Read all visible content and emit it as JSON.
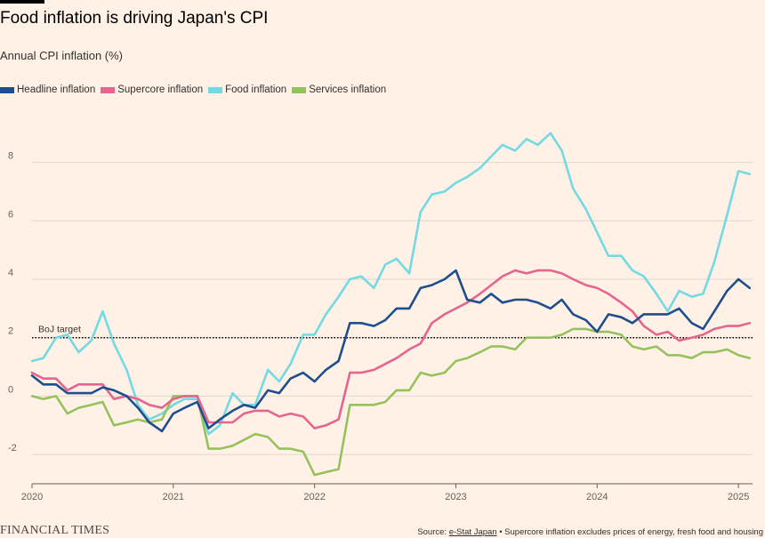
{
  "title": "Food inflation is driving Japan's CPI",
  "subtitle": "Annual CPI inflation (%)",
  "source": {
    "prefix": "Source: ",
    "link": "e-Stat Japan",
    "note": " • Supercore inflation excludes prices of energy, fresh food and housing"
  },
  "brand": "FINANCIAL TIMES",
  "chart_data": {
    "type": "line",
    "title": "Food inflation is driving Japan's CPI",
    "ylabel": "Annual CPI inflation (%)",
    "xlabel": "",
    "ylim": [
      -3,
      9.6
    ],
    "xlim": [
      2020.0,
      2025.1
    ],
    "yticks": [
      -2,
      0,
      2,
      4,
      6,
      8
    ],
    "xticks": [
      2020,
      2021,
      2022,
      2023,
      2024,
      2025
    ],
    "grid": true,
    "legend": "top-left",
    "annotations": [
      {
        "label": "BoJ target",
        "y": 2
      }
    ],
    "series": [
      {
        "name": "Headline inflation",
        "color": "#1F4E8F",
        "x": [
          2020.0,
          2020.08,
          2020.17,
          2020.25,
          2020.33,
          2020.42,
          2020.5,
          2020.58,
          2020.67,
          2020.75,
          2020.83,
          2020.92,
          2021.0,
          2021.08,
          2021.17,
          2021.25,
          2021.33,
          2021.42,
          2021.5,
          2021.58,
          2021.67,
          2021.75,
          2021.83,
          2021.92,
          2022.0,
          2022.08,
          2022.17,
          2022.25,
          2022.33,
          2022.42,
          2022.5,
          2022.58,
          2022.67,
          2022.75,
          2022.83,
          2022.92,
          2023.0,
          2023.08,
          2023.17,
          2023.25,
          2023.33,
          2023.42,
          2023.5,
          2023.58,
          2023.67,
          2023.75,
          2023.83,
          2023.92,
          2024.0,
          2024.08,
          2024.17,
          2024.25,
          2024.33,
          2024.42,
          2024.5,
          2024.58,
          2024.67,
          2024.75,
          2024.83,
          2024.92,
          2025.0,
          2025.08
        ],
        "values": [
          0.7,
          0.4,
          0.4,
          0.1,
          0.1,
          0.1,
          0.3,
          0.2,
          0.0,
          -0.4,
          -0.9,
          -1.2,
          -0.6,
          -0.4,
          -0.2,
          -1.1,
          -0.8,
          -0.5,
          -0.3,
          -0.4,
          0.2,
          0.1,
          0.6,
          0.8,
          0.5,
          0.9,
          1.2,
          2.5,
          2.5,
          2.4,
          2.6,
          3.0,
          3.0,
          3.7,
          3.8,
          4.0,
          4.3,
          3.3,
          3.2,
          3.5,
          3.2,
          3.3,
          3.3,
          3.2,
          3.0,
          3.3,
          2.8,
          2.6,
          2.2,
          2.8,
          2.7,
          2.5,
          2.8,
          2.8,
          2.8,
          3.0,
          2.5,
          2.3,
          2.9,
          3.6,
          4.0,
          3.7
        ]
      },
      {
        "name": "Supercore inflation",
        "color": "#E4658E",
        "x": [
          2020.0,
          2020.08,
          2020.17,
          2020.25,
          2020.33,
          2020.42,
          2020.5,
          2020.58,
          2020.67,
          2020.75,
          2020.83,
          2020.92,
          2021.0,
          2021.08,
          2021.17,
          2021.25,
          2021.33,
          2021.42,
          2021.5,
          2021.58,
          2021.67,
          2021.75,
          2021.83,
          2021.92,
          2022.0,
          2022.08,
          2022.17,
          2022.25,
          2022.33,
          2022.42,
          2022.5,
          2022.58,
          2022.67,
          2022.75,
          2022.83,
          2022.92,
          2023.0,
          2023.08,
          2023.17,
          2023.25,
          2023.33,
          2023.42,
          2023.5,
          2023.58,
          2023.67,
          2023.75,
          2023.83,
          2023.92,
          2024.0,
          2024.08,
          2024.17,
          2024.25,
          2024.33,
          2024.42,
          2024.5,
          2024.58,
          2024.67,
          2024.75,
          2024.83,
          2024.92,
          2025.0,
          2025.08
        ],
        "values": [
          0.8,
          0.6,
          0.6,
          0.2,
          0.4,
          0.4,
          0.4,
          -0.1,
          0.0,
          -0.1,
          -0.3,
          -0.4,
          -0.1,
          0.0,
          0.0,
          -0.9,
          -0.9,
          -0.9,
          -0.6,
          -0.5,
          -0.5,
          -0.7,
          -0.6,
          -0.7,
          -1.1,
          -1.0,
          -0.8,
          0.8,
          0.8,
          0.9,
          1.1,
          1.3,
          1.6,
          1.8,
          2.5,
          2.8,
          3.0,
          3.2,
          3.5,
          3.8,
          4.1,
          4.3,
          4.2,
          4.3,
          4.3,
          4.2,
          4.0,
          3.8,
          3.7,
          3.5,
          3.2,
          2.9,
          2.4,
          2.1,
          2.2,
          1.9,
          2.0,
          2.1,
          2.3,
          2.4,
          2.4,
          2.5
        ]
      },
      {
        "name": "Food inflation",
        "color": "#74D9E3",
        "x": [
          2020.0,
          2020.08,
          2020.17,
          2020.25,
          2020.33,
          2020.42,
          2020.5,
          2020.58,
          2020.67,
          2020.75,
          2020.83,
          2020.92,
          2021.0,
          2021.08,
          2021.17,
          2021.25,
          2021.33,
          2021.42,
          2021.5,
          2021.58,
          2021.67,
          2021.75,
          2021.83,
          2021.92,
          2022.0,
          2022.08,
          2022.17,
          2022.25,
          2022.33,
          2022.42,
          2022.5,
          2022.58,
          2022.67,
          2022.75,
          2022.83,
          2022.92,
          2023.0,
          2023.08,
          2023.17,
          2023.25,
          2023.33,
          2023.42,
          2023.5,
          2023.58,
          2023.67,
          2023.75,
          2023.83,
          2023.92,
          2024.0,
          2024.08,
          2024.17,
          2024.25,
          2024.33,
          2024.42,
          2024.5,
          2024.58,
          2024.67,
          2024.75,
          2024.83,
          2024.92,
          2025.0,
          2025.08
        ],
        "values": [
          1.2,
          1.3,
          2.0,
          2.1,
          1.5,
          1.9,
          2.9,
          1.8,
          0.9,
          -0.3,
          -0.8,
          -0.6,
          -0.3,
          -0.1,
          -0.1,
          -1.3,
          -1.0,
          0.1,
          -0.3,
          -0.3,
          0.9,
          0.5,
          1.1,
          2.1,
          2.1,
          2.8,
          3.4,
          4.0,
          4.1,
          3.7,
          4.5,
          4.7,
          4.2,
          6.3,
          6.9,
          7.0,
          7.3,
          7.5,
          7.8,
          8.2,
          8.6,
          8.4,
          8.8,
          8.6,
          9.0,
          8.4,
          7.1,
          6.4,
          5.6,
          4.8,
          4.8,
          4.3,
          4.1,
          3.5,
          2.9,
          3.6,
          3.4,
          3.5,
          4.6,
          6.2,
          7.7,
          7.6
        ]
      },
      {
        "name": "Services inflation",
        "color": "#96C25D",
        "x": [
          2020.0,
          2020.08,
          2020.17,
          2020.25,
          2020.33,
          2020.42,
          2020.5,
          2020.58,
          2020.67,
          2020.75,
          2020.83,
          2020.92,
          2021.0,
          2021.08,
          2021.17,
          2021.25,
          2021.33,
          2021.42,
          2021.5,
          2021.58,
          2021.67,
          2021.75,
          2021.83,
          2021.92,
          2022.0,
          2022.08,
          2022.17,
          2022.25,
          2022.33,
          2022.42,
          2022.5,
          2022.58,
          2022.67,
          2022.75,
          2022.83,
          2022.92,
          2023.0,
          2023.08,
          2023.17,
          2023.25,
          2023.33,
          2023.42,
          2023.5,
          2023.58,
          2023.67,
          2023.75,
          2023.83,
          2023.92,
          2024.0,
          2024.08,
          2024.17,
          2024.25,
          2024.33,
          2024.42,
          2024.5,
          2024.58,
          2024.67,
          2024.75,
          2024.83,
          2024.92,
          2025.0,
          2025.08
        ],
        "values": [
          0.0,
          -0.1,
          0.0,
          -0.6,
          -0.4,
          -0.3,
          -0.2,
          -1.0,
          -0.9,
          -0.8,
          -0.9,
          -0.8,
          0.0,
          0.0,
          0.0,
          -1.8,
          -1.8,
          -1.7,
          -1.5,
          -1.3,
          -1.4,
          -1.8,
          -1.8,
          -1.9,
          -2.7,
          -2.6,
          -2.5,
          -0.3,
          -0.3,
          -0.3,
          -0.2,
          0.2,
          0.2,
          0.8,
          0.7,
          0.8,
          1.2,
          1.3,
          1.5,
          1.7,
          1.7,
          1.6,
          2.0,
          2.0,
          2.0,
          2.1,
          2.3,
          2.3,
          2.2,
          2.2,
          2.1,
          1.7,
          1.6,
          1.7,
          1.4,
          1.4,
          1.3,
          1.5,
          1.5,
          1.6,
          1.4,
          1.3
        ]
      }
    ]
  }
}
